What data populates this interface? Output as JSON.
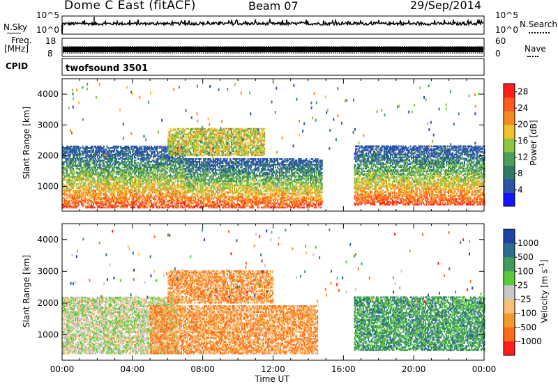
{
  "header": {
    "radar": "Dome C East (fitACF)",
    "beam": "Beam 07",
    "date": "29/Sep/2014"
  },
  "sky_panel": {
    "left_label": "N.Sky",
    "right_label": "N.Search",
    "left_ticks": [
      "10^5",
      "10^0"
    ],
    "right_ticks": [
      "10^5",
      "10^0"
    ]
  },
  "freq_panel": {
    "left_label_1": "Freq.",
    "left_label_2": "[MHz]",
    "right_label": "Nave",
    "left_ticks": [
      "18",
      "8"
    ],
    "right_ticks": [
      "60",
      "0"
    ]
  },
  "cpid_panel": {
    "label": "CPID",
    "value": "twofsound 3501"
  },
  "colors": {
    "power": [
      "#1414ff",
      "#2b55a8",
      "#2e7a63",
      "#4f9d5a",
      "#8cc63f",
      "#f2c12e",
      "#f58a1f",
      "#ff5a1f",
      "#ff1e1e"
    ],
    "velocity": [
      "#ff1e1e",
      "#ff6a1a",
      "#f59a30",
      "#f7c07a",
      "#c8c8c8",
      "#5cc93a",
      "#3f9c5c",
      "#2f6e8a",
      "#2040a8"
    ]
  },
  "chart_data": [
    {
      "type": "heatmap",
      "title": "",
      "xlabel": "",
      "ylabel": "Slant Range [km]",
      "x_ticks": [
        "00:00",
        "04:00",
        "08:00",
        "12:00",
        "16:00",
        "20:00",
        "00:00"
      ],
      "y_ticks": [
        1000,
        2000,
        3000,
        4000
      ],
      "xlim_hours": [
        0,
        24
      ],
      "ylim_km": [
        200,
        4500
      ],
      "colorbar": {
        "label": "Power [dB]",
        "ticks": [
          4,
          8,
          12,
          16,
          20,
          24,
          28
        ],
        "range": [
          0,
          30
        ]
      },
      "echo_regions": [
        {
          "t_start": 0.0,
          "t_end": 7.0,
          "r_min": 300,
          "r_max": 2300,
          "peak_dB": 26
        },
        {
          "t_start": 7.0,
          "t_end": 14.8,
          "r_min": 300,
          "r_max": 1900,
          "peak_dB": 28
        },
        {
          "t_start": 6.0,
          "t_end": 11.5,
          "r_min": 2000,
          "r_max": 2900,
          "peak_dB": 16
        },
        {
          "t_start": 16.6,
          "t_end": 24.0,
          "r_min": 400,
          "r_max": 2300,
          "peak_dB": 28
        }
      ]
    },
    {
      "type": "heatmap",
      "title": "",
      "xlabel": "Time UT",
      "ylabel": "Slant Range [km]",
      "x_ticks": [
        "00:00",
        "04:00",
        "08:00",
        "12:00",
        "16:00",
        "20:00",
        "00:00"
      ],
      "y_ticks": [
        1000,
        2000,
        3000,
        4000
      ],
      "xlim_hours": [
        0,
        24
      ],
      "ylim_km": [
        200,
        4500
      ],
      "colorbar": {
        "label": "Velocity [m s^-1]",
        "ticks": [
          "1000",
          "500",
          "100",
          "25",
          "-25",
          "-100",
          "-500",
          "-1000"
        ]
      },
      "echo_regions": [
        {
          "t_start": 0.0,
          "t_end": 6.5,
          "r_min": 400,
          "r_max": 2200,
          "dominant_velocity": 25
        },
        {
          "t_start": 5.0,
          "t_end": 14.5,
          "r_min": 400,
          "r_max": 1900,
          "dominant_velocity": -100
        },
        {
          "t_start": 6.0,
          "t_end": 12.0,
          "r_min": 2000,
          "r_max": 3000,
          "dominant_velocity": -100
        },
        {
          "t_start": 16.6,
          "t_end": 24.0,
          "r_min": 500,
          "r_max": 2200,
          "dominant_velocity": 100
        }
      ]
    }
  ]
}
